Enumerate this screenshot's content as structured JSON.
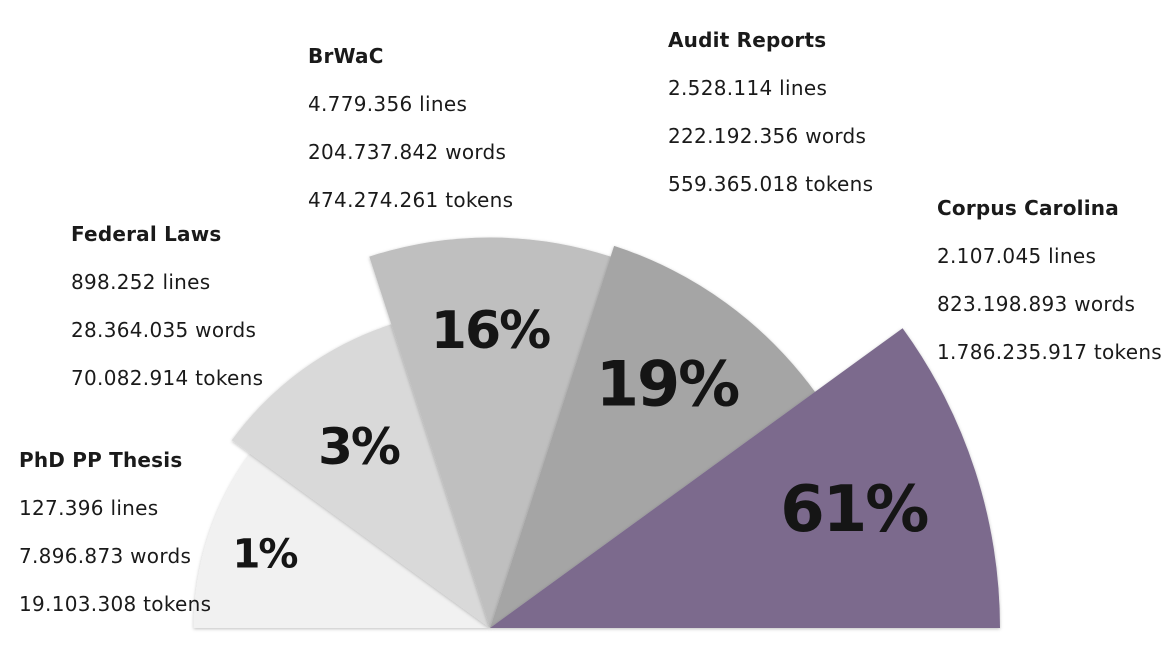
{
  "chart_data": {
    "type": "pie",
    "variant": "polar-area-half",
    "title": "",
    "colors": [
      "#f1f1f1",
      "#d9d9d9",
      "#bfbfbf",
      "#a5a5a5",
      "#7b6b8d"
    ],
    "series": [
      {
        "name": "PhD PP Thesis",
        "value": 1,
        "value_label": "1%",
        "lines": "127.396 lines",
        "words": "7.896.873 words",
        "tokens": "19.103.308 tokens"
      },
      {
        "name": "Federal Laws",
        "value": 3,
        "value_label": "3%",
        "lines": "898.252 lines",
        "words": "28.364.035 words",
        "tokens": "70.082.914 tokens"
      },
      {
        "name": "BrWaC",
        "value": 16,
        "value_label": "16%",
        "lines": "4.779.356 lines",
        "words": "204.737.842 words",
        "tokens": "474.274.261 tokens"
      },
      {
        "name": "Audit Reports",
        "value": 19,
        "value_label": "19%",
        "lines": "2.528.114 lines",
        "words": "222.192.356 words",
        "tokens": "559.365.018 tokens"
      },
      {
        "name": "Corpus Carolina",
        "value": 61,
        "value_label": "61%",
        "lines": "2.107.045 lines",
        "words": "823.198.893 words",
        "tokens": "1.786.235.917 tokens"
      }
    ]
  }
}
